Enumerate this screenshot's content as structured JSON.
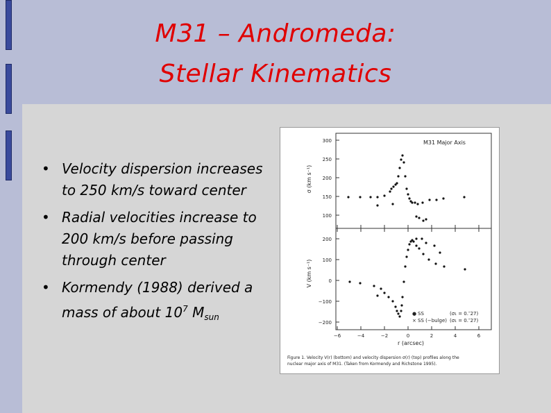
{
  "slide": {
    "title_line1": "M31 – Andromeda:",
    "title_line2": "Stellar Kinematics"
  },
  "bullets": [
    {
      "text_a": "Velocity dispersion increases to 250 km/s toward center"
    },
    {
      "text_a": "Radial velocities increase to 200 km/s before passing through center"
    },
    {
      "text_a": "Kormendy (1988) derived a mass  of about 10",
      "sup": "7",
      "text_b": " M",
      "sub": "sun"
    }
  ],
  "colors": {
    "title": "#e00000",
    "background": "#b8bdd6",
    "panel": "#d6d6d6",
    "tabs": "#3a4a9c"
  },
  "figure": {
    "top_panel": {
      "label": "M31 Major Axis",
      "ylabel": "σ (km s⁻¹)",
      "yticks": [
        "300",
        "250",
        "200",
        "150",
        "100"
      ]
    },
    "bottom_panel": {
      "ylabel": "V (km s⁻¹)",
      "yticks": [
        "200",
        "100",
        "0",
        "−100",
        "−200"
      ],
      "xticks": [
        "−6",
        "−4",
        "−2",
        "0",
        "2",
        "4",
        "6"
      ],
      "xlabel": "r (arcsec)",
      "legend": [
        {
          "symbol": "●",
          "name": "SS",
          "note": "(σ₁ = 0.″27)"
        },
        {
          "symbol": "×",
          "name": "SS (−bulge)",
          "note": "(σ₁ = 0.″27)"
        }
      ]
    },
    "caption_line1": "Figure 1.  Velocity V(r) (bottom) and velocity dispersion σ(r) (top) profiles along the",
    "caption_line2": "nuclear major axis of M31. (Taken from Kormendy and Richstone 1995)."
  }
}
